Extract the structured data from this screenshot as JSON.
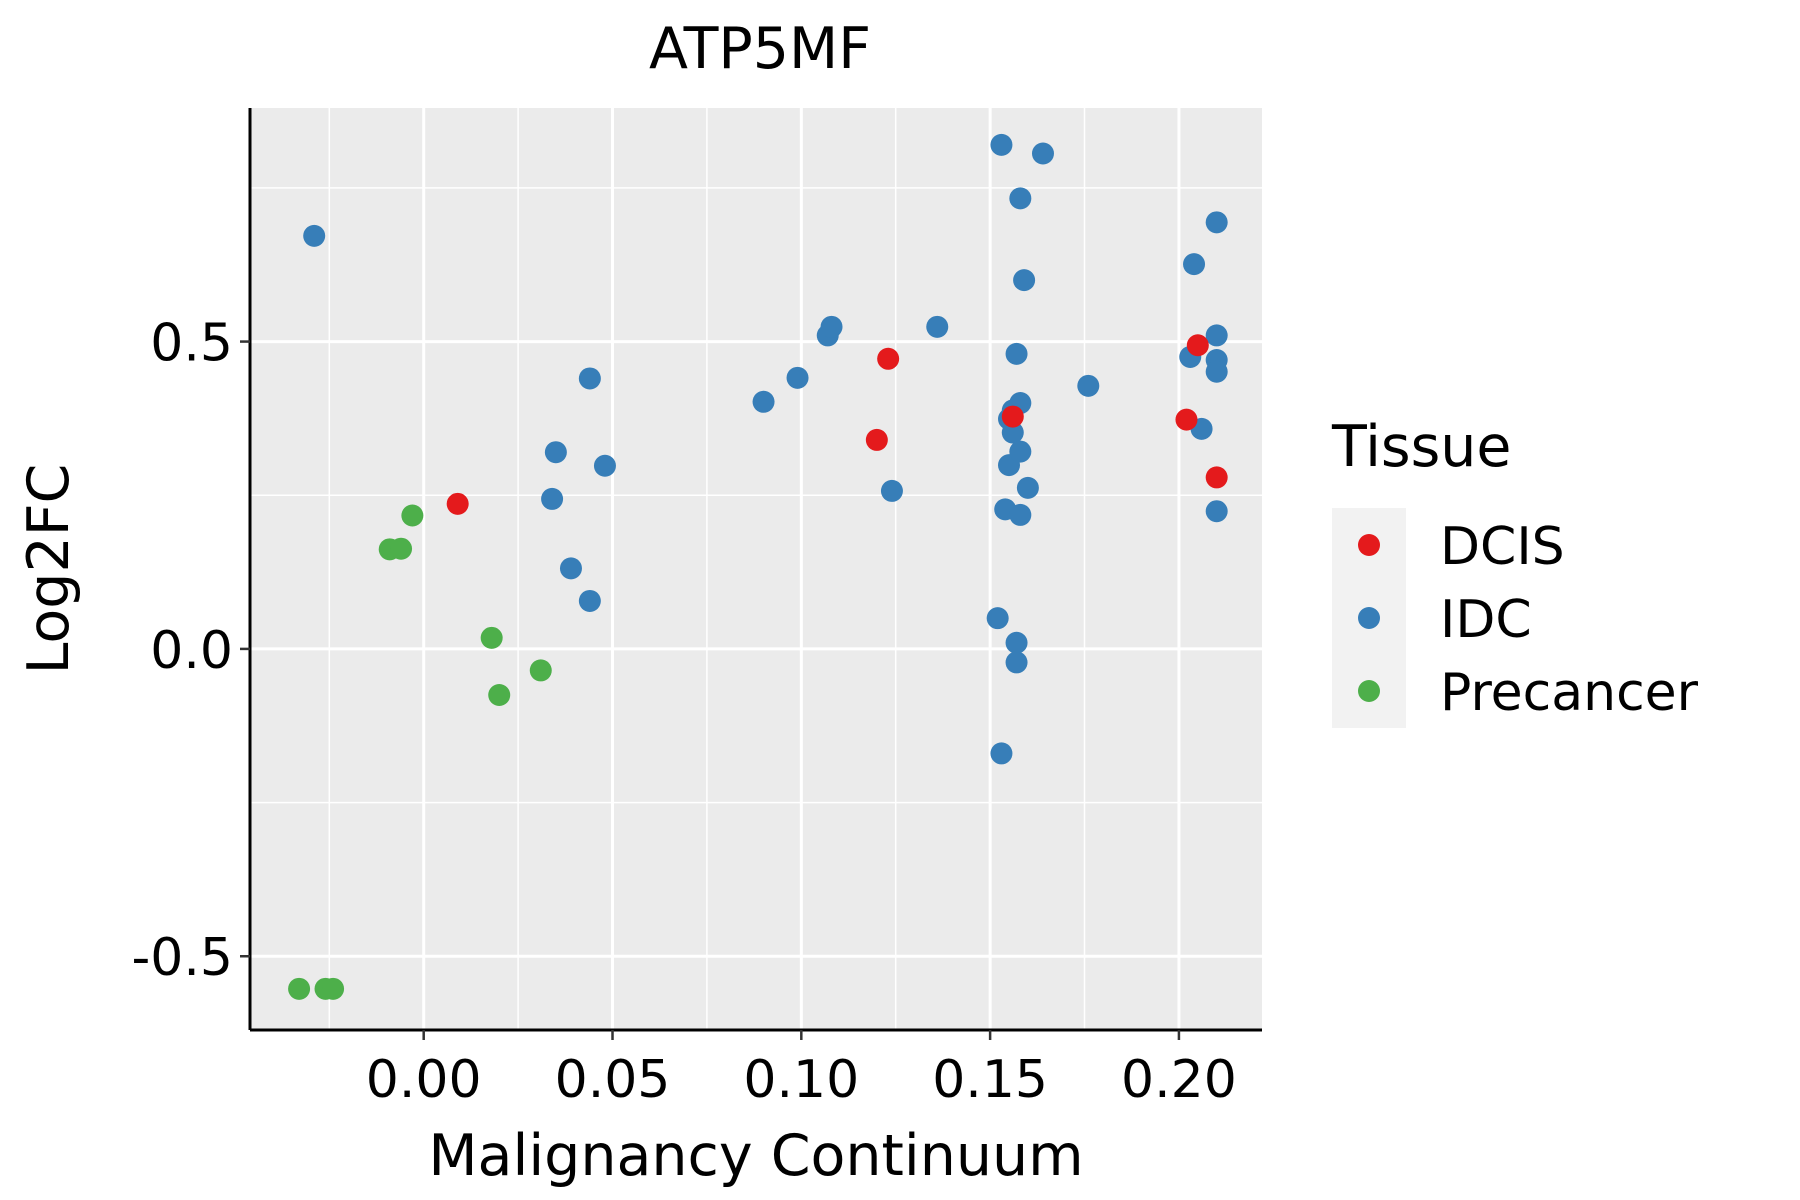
{
  "chart_data": {
    "type": "scatter",
    "title": "ATP5MF",
    "xlabel": "Malignancy Continuum",
    "ylabel": "Log2FC",
    "xlim": [
      -0.046,
      0.222
    ],
    "ylim": [
      -0.62,
      0.88
    ],
    "x_ticks": [
      0.0,
      0.05,
      0.1,
      0.15,
      0.2
    ],
    "x_tick_labels": [
      "0.00",
      "0.05",
      "0.10",
      "0.15",
      "0.20"
    ],
    "y_ticks": [
      -0.5,
      0.0,
      0.5
    ],
    "y_tick_labels": [
      "-0.5",
      "0.0",
      "0.5"
    ],
    "grid": true,
    "legend": {
      "title": "Tissue",
      "position": "right",
      "entries": [
        {
          "label": "DCIS",
          "color": "#E41A1C"
        },
        {
          "label": "IDC",
          "color": "#377EB8"
        },
        {
          "label": "Precancer",
          "color": "#4DAF4A"
        }
      ]
    },
    "series": [
      {
        "name": "Precancer",
        "color": "#4DAF4A",
        "points": [
          [
            -0.033,
            -0.553
          ],
          [
            -0.026,
            -0.553
          ],
          [
            -0.024,
            -0.553
          ],
          [
            -0.009,
            0.162
          ],
          [
            -0.006,
            0.163
          ],
          [
            -0.003,
            0.217
          ],
          [
            0.018,
            0.018
          ],
          [
            0.02,
            -0.075
          ],
          [
            0.031,
            -0.035
          ]
        ]
      },
      {
        "name": "IDC",
        "color": "#377EB8",
        "points": [
          [
            -0.029,
            0.672
          ],
          [
            0.034,
            0.244
          ],
          [
            0.035,
            0.32
          ],
          [
            0.039,
            0.131
          ],
          [
            0.044,
            0.44
          ],
          [
            0.044,
            0.078
          ],
          [
            0.048,
            0.298
          ],
          [
            0.09,
            0.402
          ],
          [
            0.099,
            0.441
          ],
          [
            0.107,
            0.51
          ],
          [
            0.108,
            0.524
          ],
          [
            0.124,
            0.257
          ],
          [
            0.136,
            0.524
          ],
          [
            0.152,
            0.05
          ],
          [
            0.153,
            0.82
          ],
          [
            0.153,
            -0.17
          ],
          [
            0.154,
            0.227
          ],
          [
            0.155,
            0.374
          ],
          [
            0.155,
            0.299
          ],
          [
            0.156,
            0.388
          ],
          [
            0.156,
            0.352
          ],
          [
            0.157,
            0.01
          ],
          [
            0.157,
            -0.022
          ],
          [
            0.157,
            0.48
          ],
          [
            0.158,
            0.321
          ],
          [
            0.158,
            0.218
          ],
          [
            0.158,
            0.4
          ],
          [
            0.158,
            0.733
          ],
          [
            0.159,
            0.6
          ],
          [
            0.16,
            0.262
          ],
          [
            0.164,
            0.806
          ],
          [
            0.176,
            0.428
          ],
          [
            0.203,
            0.475
          ],
          [
            0.204,
            0.626
          ],
          [
            0.206,
            0.358
          ],
          [
            0.21,
            0.694
          ],
          [
            0.21,
            0.51
          ],
          [
            0.21,
            0.47
          ],
          [
            0.21,
            0.451
          ],
          [
            0.21,
            0.224
          ]
        ]
      },
      {
        "name": "DCIS",
        "color": "#E41A1C",
        "points": [
          [
            0.009,
            0.236
          ],
          [
            0.12,
            0.34
          ],
          [
            0.123,
            0.472
          ],
          [
            0.156,
            0.378
          ],
          [
            0.202,
            0.373
          ],
          [
            0.205,
            0.494
          ],
          [
            0.21,
            0.279
          ]
        ]
      }
    ]
  }
}
